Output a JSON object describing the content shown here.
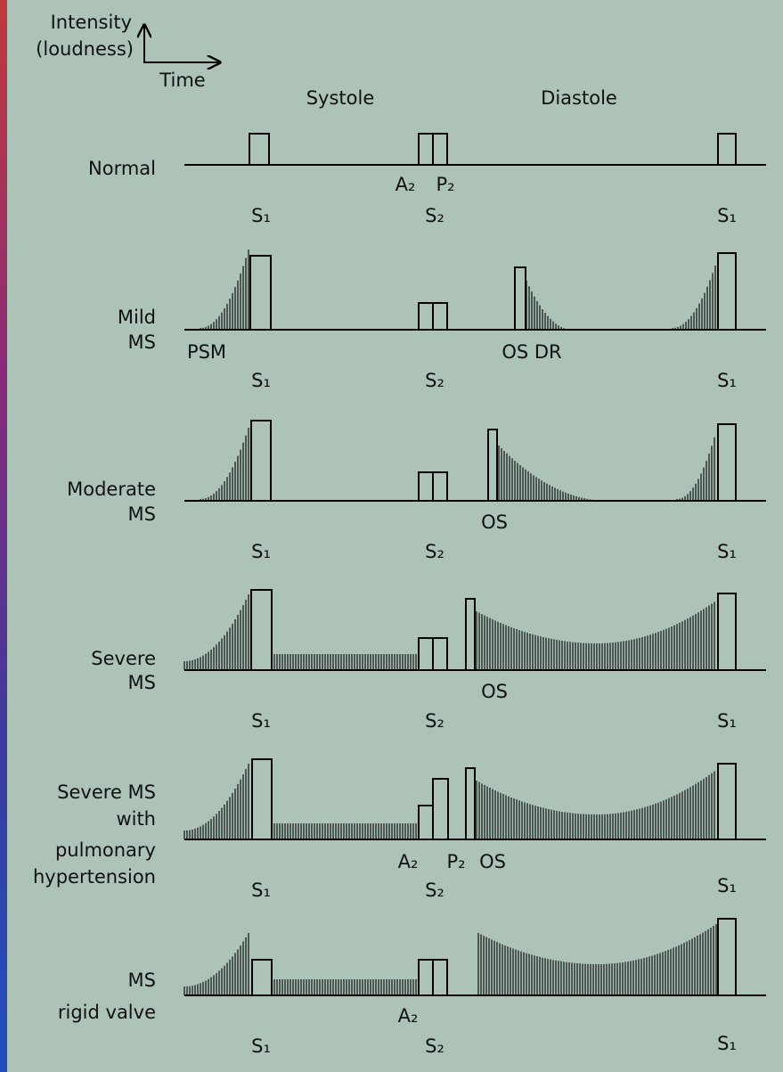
{
  "legend": {
    "y_label": [
      "Intensity",
      "(loudness)"
    ],
    "x_label": "Time"
  },
  "phases": [
    "Systole",
    "Diastole"
  ],
  "rows": [
    {
      "label": [
        "Normal"
      ],
      "marks": [
        "A₂",
        "P₂",
        "S₁",
        "S₂",
        "S₁"
      ]
    },
    {
      "label": [
        "Mild",
        "MS"
      ],
      "marks": [
        "PSM",
        "OS DR",
        "S₁",
        "S₂",
        "S₁"
      ]
    },
    {
      "label": [
        "Moderate",
        "MS"
      ],
      "marks": [
        "OS",
        "S₁",
        "S₂",
        "S₁"
      ]
    },
    {
      "label": [
        "Severe",
        "MS"
      ],
      "marks": [
        "OS",
        "S₁",
        "S₂",
        "S₁"
      ]
    },
    {
      "label": [
        "Severe MS",
        "with",
        "pulmonary",
        "hypertension"
      ],
      "marks": [
        "A₂",
        "P₂",
        "OS",
        "S₁",
        "S₂",
        "S₁"
      ]
    },
    {
      "label": [
        "MS",
        "rigid valve"
      ],
      "marks": [
        "A₂",
        "S₁",
        "S₂",
        "S₁"
      ]
    }
  ]
}
